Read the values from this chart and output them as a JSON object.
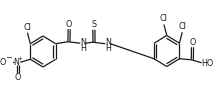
{
  "bg_color": "#ffffff",
  "line_color": "#1a1a1a",
  "line_width": 0.9,
  "font_size": 5.8,
  "fig_width": 2.22,
  "fig_height": 1.03,
  "dpi": 100,
  "xlim": [
    0,
    22
  ],
  "ylim": [
    0,
    10
  ]
}
